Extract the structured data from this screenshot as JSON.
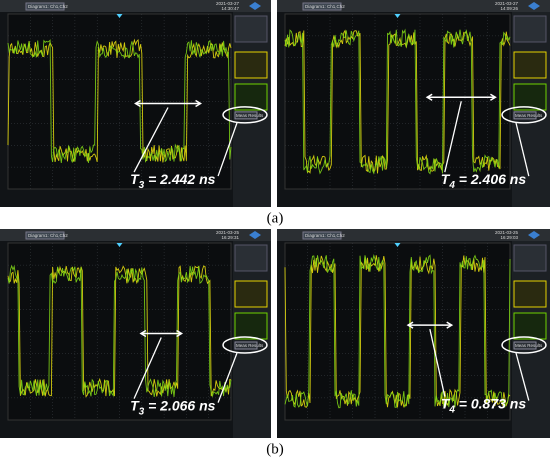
{
  "figure": {
    "panels": [
      {
        "title": "Diagram1: Ch1,Ch2",
        "date": "2021-03-27",
        "time": "14:30:47",
        "results_label": "Meas Results",
        "measurement": {
          "symbol": "T",
          "subscript": "3",
          "value": " = 2.442 ns"
        }
      },
      {
        "title": "Diagram1: Ch1,Ch2",
        "date": "2021-03-27",
        "time": "14:09:26",
        "results_label": "Meas Results",
        "measurement": {
          "symbol": "T",
          "subscript": "4",
          "value": " = 2.406 ns"
        }
      },
      {
        "title": "Diagram1: Ch1,Ch2",
        "date": "2021-03-25",
        "time": "16:29:31",
        "results_label": "Meas Results",
        "measurement": {
          "symbol": "T",
          "subscript": "3",
          "value": " = 2.066 ns"
        }
      },
      {
        "title": "Diagram1: Ch1,Ch2",
        "date": "2021-03-25",
        "time": "16:29:03",
        "results_label": "Meas Results",
        "measurement": {
          "symbol": "T",
          "subscript": "4",
          "value": " = 0.873 ns"
        }
      }
    ],
    "captions": [
      "(a)",
      "(b)"
    ]
  }
}
